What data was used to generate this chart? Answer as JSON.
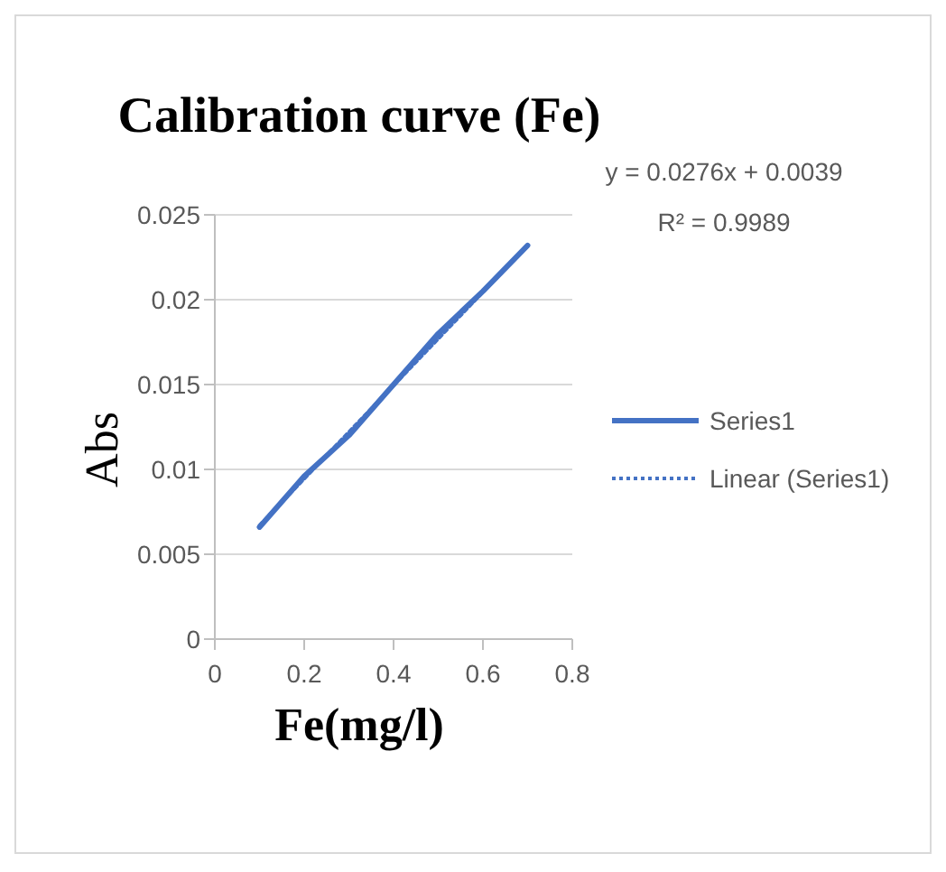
{
  "chart_data": {
    "type": "line",
    "title": "Calibration curve (Fe)",
    "xlabel": "Fe(mg/l)",
    "ylabel": "Abs",
    "series": [
      {
        "name": "Series1",
        "color": "#4472c4",
        "x": [
          0.1,
          0.2,
          0.3,
          0.4,
          0.5,
          0.6,
          0.7
        ],
        "values": [
          0.0066,
          0.0096,
          0.012,
          0.015,
          0.018,
          0.0205,
          0.0232
        ],
        "line_style": "solid"
      },
      {
        "name": "Linear (Series1)",
        "color": "#4472c4",
        "x": [
          0.1,
          0.7
        ],
        "values": [
          0.0067,
          0.0232
        ],
        "line_style": "dotted"
      }
    ],
    "xlim": [
      0,
      0.8
    ],
    "xticks": [
      0,
      0.2,
      0.4,
      0.6,
      0.8
    ],
    "ylim": [
      0,
      0.025
    ],
    "yticks": [
      0,
      0.005,
      0.01,
      0.015,
      0.02,
      0.025
    ],
    "grid": "y",
    "legend": "right",
    "annotations": [
      "y = 0.0276x + 0.0039",
      "R² = 0.9989"
    ]
  }
}
